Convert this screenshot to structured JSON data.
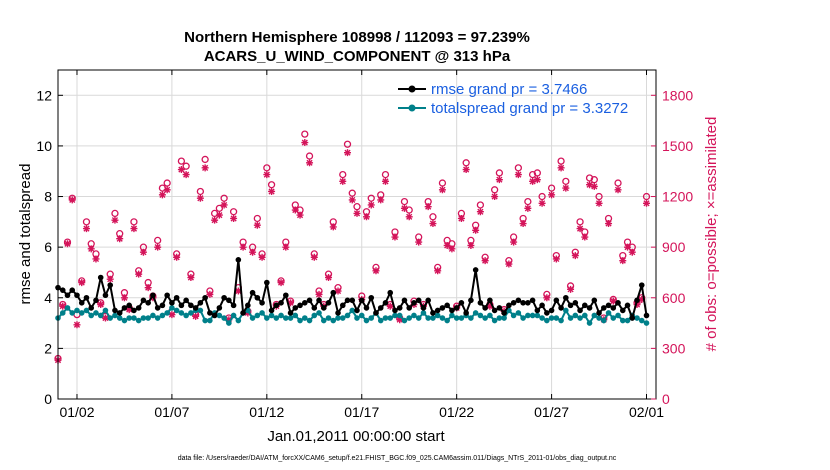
{
  "chart_data": {
    "type": "line",
    "title_line1": "Northern Hemisphere 108998 / 112093 = 97.239%",
    "title_line2": "ACARS_U_WIND_COMPONENT @ 313 hPa",
    "xlabel": "Jan.01,2011 00:00:00 start",
    "ylabel": "rmse and totalspread",
    "y2label": "# of obs: o=possible; ×=assimilated",
    "footer": "data file: /Users/raeder/DAI/ATM_forcXX/CAM6_setup/f.e21.FHIST_BGC.f09_025.CAM6assim.011/Diags_NTrS_2011-01/obs_diag_output.nc",
    "xlim": [
      0,
      31.5
    ],
    "ylim": [
      0,
      13
    ],
    "y2lim": [
      0,
      1950
    ],
    "x_ticks": [
      1,
      6,
      11,
      16,
      21,
      26,
      31
    ],
    "x_tick_labels": [
      "01/02",
      "01/07",
      "01/12",
      "01/17",
      "01/22",
      "01/27",
      "02/01"
    ],
    "y_ticks": [
      0,
      2,
      4,
      6,
      8,
      10,
      12
    ],
    "y_tick_labels": [
      "0",
      "2",
      "4",
      "6",
      "8",
      "10",
      "12"
    ],
    "y2_ticks": [
      0,
      300,
      600,
      900,
      1200,
      1500,
      1800
    ],
    "y2_tick_labels": [
      "0",
      "300",
      "600",
      "900",
      "1200",
      "1500",
      "1800"
    ],
    "legend": {
      "rmse_label": "rmse grand pr = 3.7466",
      "spread_label": "totalspread grand pr = 3.3272"
    },
    "colors": {
      "rmse": "#000000",
      "totalspread": "#00808a",
      "obs": "#d4145a",
      "grid": "#d9d9d9"
    },
    "series": [
      {
        "name": "rmse",
        "x": [
          0.0,
          0.25,
          0.5,
          0.75,
          1.0,
          1.25,
          1.5,
          1.75,
          2.0,
          2.25,
          2.5,
          2.75,
          3.0,
          3.25,
          3.5,
          3.75,
          4.0,
          4.25,
          4.5,
          4.75,
          5.0,
          5.25,
          5.5,
          5.75,
          6.0,
          6.25,
          6.5,
          6.75,
          7.0,
          7.25,
          7.5,
          7.75,
          8.0,
          8.25,
          8.5,
          8.75,
          9.0,
          9.25,
          9.5,
          9.75,
          10.0,
          10.25,
          10.5,
          10.75,
          11.0,
          11.25,
          11.5,
          11.75,
          12.0,
          12.25,
          12.5,
          12.75,
          13.0,
          13.25,
          13.5,
          13.75,
          14.0,
          14.25,
          14.5,
          14.75,
          15.0,
          15.25,
          15.5,
          15.75,
          16.0,
          16.25,
          16.5,
          16.75,
          17.0,
          17.25,
          17.5,
          17.75,
          18.0,
          18.25,
          18.5,
          18.75,
          19.0,
          19.25,
          19.5,
          19.75,
          20.0,
          20.25,
          20.5,
          20.75,
          21.0,
          21.25,
          21.5,
          21.75,
          22.0,
          22.25,
          22.5,
          22.75,
          23.0,
          23.25,
          23.5,
          23.75,
          24.0,
          24.25,
          24.5,
          24.75,
          25.0,
          25.25,
          25.5,
          25.75,
          26.0,
          26.25,
          26.5,
          26.75,
          27.0,
          27.25,
          27.5,
          27.75,
          28.0,
          28.25,
          28.5,
          28.75,
          29.0,
          29.25,
          29.5,
          29.75,
          30.0,
          30.25,
          30.5,
          30.75,
          31.0
        ],
        "values": [
          4.4,
          4.3,
          4.1,
          4.3,
          4.1,
          3.8,
          4.0,
          3.6,
          3.9,
          4.8,
          4.1,
          4.5,
          3.5,
          3.4,
          3.6,
          3.7,
          3.5,
          3.6,
          3.9,
          3.8,
          4.1,
          3.6,
          3.7,
          4.1,
          3.8,
          4.0,
          3.7,
          3.9,
          3.7,
          3.6,
          3.8,
          4.0,
          3.4,
          3.3,
          3.6,
          4.0,
          3.9,
          3.7,
          5.5,
          3.4,
          3.7,
          4.2,
          4.0,
          3.8,
          4.6,
          3.5,
          3.7,
          3.8,
          4.1,
          3.4,
          3.6,
          3.7,
          3.8,
          3.9,
          3.6,
          3.9,
          3.6,
          3.8,
          4.2,
          3.4,
          3.7,
          3.9,
          3.9,
          3.5,
          3.9,
          3.6,
          4.0,
          3.4,
          3.6,
          3.8,
          4.2,
          3.5,
          3.6,
          3.9,
          3.6,
          3.8,
          3.9,
          3.6,
          3.9,
          3.4,
          3.5,
          3.6,
          3.7,
          3.5,
          3.6,
          3.8,
          3.4,
          3.9,
          5.1,
          3.8,
          3.6,
          3.9,
          3.5,
          3.6,
          3.4,
          3.7,
          3.8,
          3.9,
          3.8,
          3.8,
          3.9,
          3.5,
          3.7,
          3.4,
          3.5,
          3.9,
          3.6,
          4.0,
          3.7,
          3.8,
          3.5,
          3.7,
          3.6,
          3.9,
          3.4,
          3.6,
          3.7,
          3.6,
          3.8,
          3.5,
          3.7,
          3.2,
          3.9,
          4.5,
          3.3
        ]
      },
      {
        "name": "totalspread",
        "x": [
          0.0,
          0.25,
          0.5,
          0.75,
          1.0,
          1.25,
          1.5,
          1.75,
          2.0,
          2.25,
          2.5,
          2.75,
          3.0,
          3.25,
          3.5,
          3.75,
          4.0,
          4.25,
          4.5,
          4.75,
          5.0,
          5.25,
          5.5,
          5.75,
          6.0,
          6.25,
          6.5,
          6.75,
          7.0,
          7.25,
          7.5,
          7.75,
          8.0,
          8.25,
          8.5,
          8.75,
          9.0,
          9.25,
          9.5,
          9.75,
          10.0,
          10.25,
          10.5,
          10.75,
          11.0,
          11.25,
          11.5,
          11.75,
          12.0,
          12.25,
          12.5,
          12.75,
          13.0,
          13.25,
          13.5,
          13.75,
          14.0,
          14.25,
          14.5,
          14.75,
          15.0,
          15.25,
          15.5,
          15.75,
          16.0,
          16.25,
          16.5,
          16.75,
          17.0,
          17.25,
          17.5,
          17.75,
          18.0,
          18.25,
          18.5,
          18.75,
          19.0,
          19.25,
          19.5,
          19.75,
          20.0,
          20.25,
          20.5,
          20.75,
          21.0,
          21.25,
          21.5,
          21.75,
          22.0,
          22.25,
          22.5,
          22.75,
          23.0,
          23.25,
          23.5,
          23.75,
          24.0,
          24.25,
          24.5,
          24.75,
          25.0,
          25.25,
          25.5,
          25.75,
          26.0,
          26.25,
          26.5,
          26.75,
          27.0,
          27.25,
          27.5,
          27.75,
          28.0,
          28.25,
          28.5,
          28.75,
          29.0,
          29.25,
          29.5,
          29.75,
          30.0,
          30.25,
          30.5,
          30.75,
          31.0
        ],
        "values": [
          3.2,
          3.4,
          3.6,
          3.4,
          3.5,
          3.4,
          3.5,
          3.3,
          3.4,
          3.3,
          3.5,
          3.2,
          3.3,
          3.2,
          3.1,
          3.2,
          3.2,
          3.1,
          3.2,
          3.2,
          3.3,
          3.2,
          3.3,
          3.4,
          3.6,
          3.5,
          3.4,
          3.3,
          3.4,
          3.5,
          3.5,
          3.1,
          3.1,
          3.4,
          3.3,
          3.2,
          3.0,
          3.3,
          3.1,
          3.4,
          3.5,
          3.2,
          3.3,
          3.4,
          3.2,
          3.3,
          3.2,
          3.3,
          3.2,
          3.2,
          3.3,
          3.1,
          3.2,
          3.1,
          3.3,
          3.4,
          3.1,
          3.2,
          3.1,
          3.2,
          3.2,
          3.3,
          3.5,
          3.2,
          3.3,
          3.1,
          3.2,
          3.4,
          3.1,
          3.2,
          3.2,
          3.3,
          3.3,
          3.1,
          3.2,
          3.3,
          3.2,
          3.4,
          3.2,
          3.2,
          3.3,
          3.2,
          3.1,
          3.3,
          3.2,
          3.2,
          3.3,
          3.2,
          3.4,
          3.3,
          3.2,
          3.3,
          3.1,
          3.2,
          3.2,
          3.5,
          3.3,
          3.4,
          3.2,
          3.3,
          3.3,
          3.3,
          3.2,
          3.1,
          3.2,
          3.2,
          3.1,
          3.5,
          3.2,
          3.3,
          3.2,
          3.3,
          3.0,
          3.3,
          3.2,
          3.1,
          3.4,
          3.2,
          3.3,
          3.1,
          3.1,
          3.3,
          3.2,
          3.1,
          3.0
        ]
      },
      {
        "name": "obs_possible",
        "x": [
          0.0,
          0.25,
          0.5,
          0.75,
          1.0,
          1.25,
          1.5,
          1.75,
          2.0,
          2.25,
          2.5,
          2.75,
          3.0,
          3.25,
          3.5,
          3.75,
          4.0,
          4.25,
          4.5,
          4.75,
          5.0,
          5.25,
          5.5,
          5.75,
          6.0,
          6.25,
          6.5,
          6.75,
          7.0,
          7.25,
          7.5,
          7.75,
          8.0,
          8.25,
          8.5,
          8.75,
          9.0,
          9.25,
          9.5,
          9.75,
          10.0,
          10.25,
          10.5,
          10.75,
          11.0,
          11.25,
          11.5,
          11.75,
          12.0,
          12.25,
          12.5,
          12.75,
          13.0,
          13.25,
          13.5,
          13.75,
          14.0,
          14.25,
          14.5,
          14.75,
          15.0,
          15.25,
          15.5,
          15.75,
          16.0,
          16.25,
          16.5,
          16.75,
          17.0,
          17.25,
          17.5,
          17.75,
          18.0,
          18.25,
          18.5,
          18.75,
          19.0,
          19.25,
          19.5,
          19.75,
          20.0,
          20.25,
          20.5,
          20.75,
          21.0,
          21.25,
          21.5,
          21.75,
          22.0,
          22.25,
          22.5,
          22.75,
          23.0,
          23.25,
          23.5,
          23.75,
          24.0,
          24.25,
          24.5,
          24.75,
          25.0,
          25.25,
          25.5,
          25.75,
          26.0,
          26.25,
          26.5,
          26.75,
          27.0,
          27.25,
          27.5,
          27.75,
          28.0,
          28.25,
          28.5,
          28.75,
          29.0,
          29.25,
          29.5,
          29.75,
          30.0,
          30.25,
          30.5,
          30.75,
          31.0
        ],
        "values": [
          240,
          560,
          930,
          1190,
          500,
          700,
          1050,
          920,
          860,
          570,
          490,
          740,
          1100,
          980,
          630,
          540,
          1050,
          760,
          900,
          690,
          610,
          940,
          1250,
          1280,
          520,
          860,
          1410,
          1380,
          740,
          500,
          1230,
          1420,
          640,
          1100,
          1130,
          1190,
          480,
          1110,
          660,
          930,
          520,
          900,
          1070,
          860,
          1370,
          1270,
          560,
          700,
          930,
          580,
          1150,
          1120,
          1570,
          1440,
          860,
          640,
          560,
          740,
          1050,
          660,
          1330,
          1510,
          1220,
          1140,
          610,
          1110,
          1190,
          780,
          1210,
          1330,
          560,
          990,
          480,
          1170,
          1120,
          580,
          960,
          560,
          1170,
          1080,
          780,
          1280,
          940,
          920,
          550,
          1100,
          1400,
          940,
          1030,
          1150,
          840,
          560,
          1240,
          1340,
          530,
          820,
          960,
          1370,
          1070,
          1170,
          1330,
          1340,
          1200,
          620,
          1250,
          850,
          1410,
          1290,
          670,
          870,
          1050,
          990,
          1310,
          1300,
          1200,
          480,
          1070,
          590,
          1280,
          850,
          930,
          900,
          570,
          600,
          1200
        ]
      },
      {
        "name": "obs_assimilated",
        "x": [
          0.0,
          0.25,
          0.5,
          0.75,
          1.0,
          1.25,
          1.5,
          1.75,
          2.0,
          2.25,
          2.5,
          2.75,
          3.0,
          3.25,
          3.5,
          3.75,
          4.0,
          4.25,
          4.5,
          4.75,
          5.0,
          5.25,
          5.5,
          5.75,
          6.0,
          6.25,
          6.5,
          6.75,
          7.0,
          7.25,
          7.5,
          7.75,
          8.0,
          8.25,
          8.5,
          8.75,
          9.0,
          9.25,
          9.5,
          9.75,
          10.0,
          10.25,
          10.5,
          10.75,
          11.0,
          11.25,
          11.5,
          11.75,
          12.0,
          12.25,
          12.5,
          12.75,
          13.0,
          13.25,
          13.5,
          13.75,
          14.0,
          14.25,
          14.5,
          14.75,
          15.0,
          15.25,
          15.5,
          15.75,
          16.0,
          16.25,
          16.5,
          16.75,
          17.0,
          17.25,
          17.5,
          17.75,
          18.0,
          18.25,
          18.5,
          18.75,
          19.0,
          19.25,
          19.5,
          19.75,
          20.0,
          20.25,
          20.5,
          20.75,
          21.0,
          21.25,
          21.5,
          21.75,
          22.0,
          22.25,
          22.5,
          22.75,
          23.0,
          23.25,
          23.5,
          23.75,
          24.0,
          24.25,
          24.5,
          24.75,
          25.0,
          25.25,
          25.5,
          25.75,
          26.0,
          26.25,
          26.5,
          26.75,
          27.0,
          27.25,
          27.5,
          27.75,
          28.0,
          28.25,
          28.5,
          28.75,
          29.0,
          29.25,
          29.5,
          29.75,
          30.0,
          30.25,
          30.5,
          30.75,
          31.0
        ],
        "values": [
          230,
          550,
          920,
          1180,
          440,
          690,
          1010,
          890,
          830,
          560,
          480,
          710,
          1060,
          950,
          600,
          530,
          1010,
          740,
          870,
          660,
          600,
          900,
          1210,
          1240,
          500,
          840,
          1360,
          1330,
          720,
          490,
          1190,
          1370,
          620,
          1060,
          1090,
          1150,
          470,
          1070,
          640,
          900,
          510,
          870,
          1030,
          840,
          1330,
          1230,
          550,
          690,
          900,
          570,
          1120,
          1090,
          1520,
          1400,
          840,
          620,
          550,
          720,
          1020,
          640,
          1290,
          1460,
          1180,
          1100,
          590,
          1080,
          1150,
          760,
          1180,
          1290,
          550,
          960,
          470,
          1130,
          1080,
          560,
          930,
          550,
          1140,
          1040,
          760,
          1240,
          910,
          890,
          540,
          1070,
          1360,
          910,
          1000,
          1110,
          820,
          550,
          1200,
          1300,
          520,
          800,
          930,
          1330,
          1040,
          1130,
          1290,
          1300,
          1160,
          600,
          1210,
          830,
          1370,
          1250,
          650,
          850,
          1010,
          960,
          1270,
          1260,
          1160,
          470,
          1040,
          580,
          1240,
          820,
          900,
          870,
          560,
          590,
          1160
        ]
      }
    ]
  }
}
